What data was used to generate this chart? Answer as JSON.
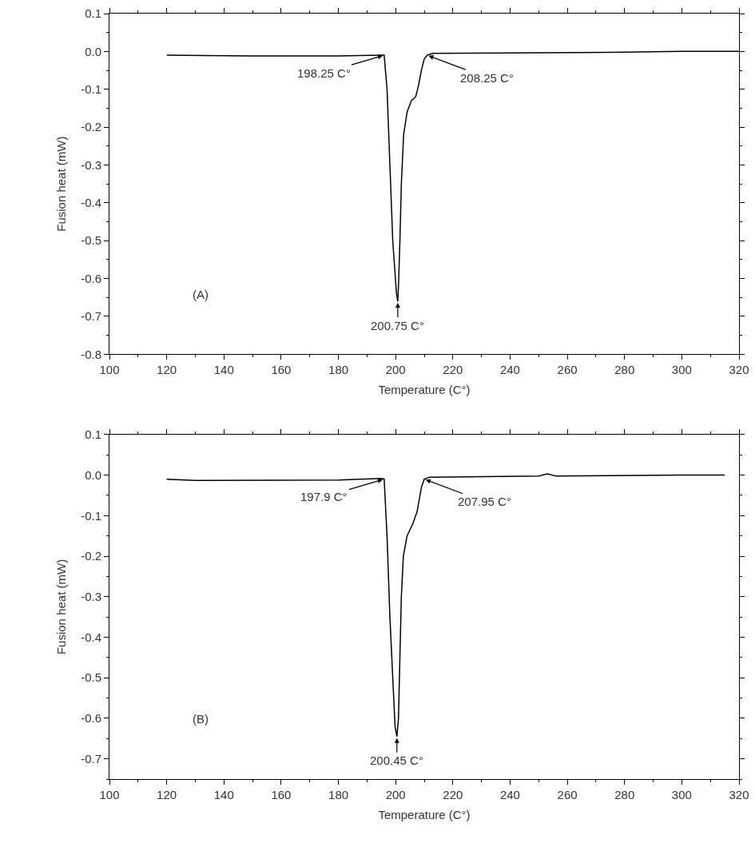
{
  "chart_data": [
    {
      "type": "line",
      "xlabel": "Temperature (C°)",
      "ylabel": "Fusion heat (mW)",
      "xlim": [
        100,
        320
      ],
      "xticks": [
        100,
        120,
        140,
        160,
        180,
        200,
        220,
        240,
        260,
        280,
        300,
        320
      ],
      "ylim": [
        -0.8,
        0.1
      ],
      "yticks": [
        0.1,
        {
          "value": 0,
          "label": "0.0"
        },
        -0.1,
        -0.2,
        -0.3,
        -0.4,
        -0.5,
        -0.6,
        -0.7,
        -0.8
      ],
      "grid": false,
      "marker": "none",
      "line_style": "solid",
      "series": [
        {
          "color": "#000000",
          "x": [
            120,
            150,
            180,
            195,
            196,
            197,
            198,
            199,
            200.3,
            200.75,
            201,
            201.5,
            202,
            202.8,
            204,
            205.5,
            207,
            208,
            209,
            210,
            211,
            213,
            240,
            280,
            300,
            320
          ],
          "values": [
            -0.01,
            -0.012,
            -0.012,
            -0.01,
            -0.01,
            -0.1,
            -0.3,
            -0.5,
            -0.64,
            -0.66,
            -0.62,
            -0.5,
            -0.35,
            -0.22,
            -0.16,
            -0.13,
            -0.12,
            -0.09,
            -0.05,
            -0.02,
            -0.01,
            -0.005,
            -0.004,
            -0.002,
            0,
            0
          ]
        }
      ],
      "annotations": [
        {
          "text": "198.25 C°",
          "x": 196,
          "y": -0.01
        },
        {
          "text": "208.25 C°",
          "x": 211,
          "y": -0.01
        },
        {
          "text": "200.75 C°",
          "x": 200.75,
          "y": -0.66
        },
        "(A)"
      ]
    },
    {
      "type": "line",
      "xlabel": "Temperature (C°)",
      "ylabel": "Fusion heat (mW)",
      "xlim": [
        100,
        320
      ],
      "xticks": [
        100,
        120,
        140,
        160,
        180,
        200,
        220,
        240,
        260,
        280,
        300,
        320
      ],
      "ylim": [
        -0.75,
        0.1
      ],
      "yticks": [
        0.1,
        {
          "value": 0,
          "label": "0.0"
        },
        -0.1,
        -0.2,
        -0.3,
        -0.4,
        -0.5,
        -0.6,
        -0.7
      ],
      "grid": false,
      "marker": "none",
      "line_style": "solid",
      "series": [
        {
          "color": "#000000",
          "x": [
            120,
            130,
            180,
            195,
            196,
            197,
            198,
            199,
            199.8,
            200.45,
            201,
            201.5,
            202,
            202.7,
            204,
            206,
            207.5,
            209,
            210,
            212,
            250,
            253,
            256,
            300,
            315
          ],
          "values": [
            -0.01,
            -0.013,
            -0.012,
            -0.008,
            -0.01,
            -0.15,
            -0.35,
            -0.5,
            -0.62,
            -0.645,
            -0.6,
            -0.45,
            -0.3,
            -0.2,
            -0.15,
            -0.12,
            -0.09,
            -0.03,
            -0.01,
            -0.005,
            -0.002,
            0.003,
            -0.002,
            0,
            0
          ]
        }
      ],
      "annotations": [
        {
          "text": "197.9 C°",
          "x": 196,
          "y": -0.01
        },
        {
          "text": "207.95 C°",
          "x": 210,
          "y": -0.01
        },
        {
          "text": "200.45 C°",
          "x": 200.45,
          "y": -0.645
        },
        "(B)"
      ]
    }
  ]
}
